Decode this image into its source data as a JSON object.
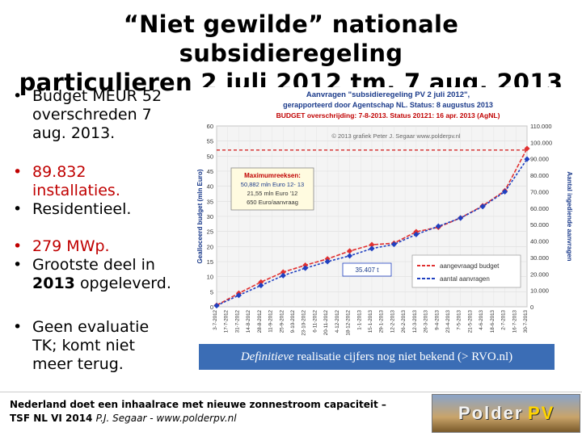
{
  "title_line1": "“Niet gewilde” nationale subsidieregeling",
  "title_line2": "particulieren 2 juli 2012 tm. 7 aug. 2013",
  "bullets": {
    "budget_line1": "Budget  MEUR 52",
    "budget_line2": "overschreden 7",
    "budget_line3": "aug. 2013.",
    "installs_line1": "89.832",
    "installs_line2": "installaties.",
    "residential": "Residentieel.",
    "mwp": "279 MWp.",
    "largest_line1": "Grootste deel in",
    "largest_line2_bold": "2013",
    "largest_line2_rest": "opgeleverd.",
    "noeval_line1": "Geen evaluatie",
    "noeval_line2": "TK; komt niet",
    "noeval_line3": "meer terug."
  },
  "note_box": {
    "italic": "Definitieve",
    "rest": "realisatie cijfers nog niet bekend (> RVO.nl)"
  },
  "footer": {
    "line1": "Nederland doet een inhaalrace met nieuwe zonnestroom capaciteit –",
    "line2_bold": "TSF NL VI 2014",
    "line2_rest": "P.J. Segaar  - www.polderpv.nl"
  },
  "logo": {
    "word1": "Polder",
    "word2": "PV"
  },
  "chart_data": {
    "type": "line",
    "title_line1": "Aanvragen \"subsidieregeling  PV 2 juli 2012\",",
    "title_line2": "gerapporteerd door Agentschap NL. Status: 8 augustus 2013",
    "title_line3": "BUDGET  overschrijding: 7-8-2013. Status 20121: 16 apr. 2013 (AgNL)",
    "credit": "© 2013 grafiek Peter J. Segaar  www.polderpv.nl",
    "ylabel_left": "Gealloceerd budget (mln Euro)",
    "ylabel_right": "Aantal ingediende aanvragen",
    "y_left_ticks": [
      "60",
      "55",
      "50",
      "45",
      "40",
      "35",
      "30",
      "25",
      "20",
      "15",
      "10",
      "5",
      "0"
    ],
    "y_right_ticks": [
      "110.000",
      "100.000",
      "90.000",
      "80.000",
      "70.000",
      "60.000",
      "50.000",
      "40.000",
      "30.000",
      "20.000",
      "10.000",
      "0"
    ],
    "ylim_left": [
      0,
      60
    ],
    "ylim_right": [
      0,
      110000
    ],
    "budget_line": 52,
    "x_labels": [
      "3-7-2012",
      "17-7-2012",
      "31-7-2012",
      "14-8-2012",
      "28-8-2012",
      "11-9-2012",
      "25-9-2012",
      "9-10-2012",
      "23-10-2012",
      "6-11-2012",
      "20-11-2012",
      "4-12-2012",
      "18-12-2012",
      "1-1-2013",
      "15-1-2013",
      "29-1-2013",
      "12-2-2013",
      "26-2-2013",
      "12-3-2013",
      "26-3-2013",
      "9-4-2013",
      "23-4-2013",
      "7-5-2013",
      "21-5-2013",
      "4-6-2013",
      "18-6-2013",
      "2-7-2013",
      "16-7-2013",
      "30-7-2013"
    ],
    "max_box": {
      "heading": "Maximumreeksen:",
      "line1": "50,882 mln Euro 12- 13",
      "line2": "21,55 mln Euro '12",
      "line3": "650 Euro/aanvraag"
    },
    "annotation_count": "35.407 t",
    "series": [
      {
        "name": "aangevraagd budget",
        "color": "#e03030",
        "x": [
          0,
          2,
          4,
          6,
          8,
          10,
          12,
          14,
          16,
          18,
          20,
          22,
          24,
          26,
          28
        ],
        "values": [
          0.5,
          4.5,
          8.2,
          11.5,
          13.8,
          15.9,
          18.5,
          20.6,
          21.1,
          24.9,
          26.4,
          29.5,
          33.5,
          38.5,
          52.5
        ]
      },
      {
        "name": "aantal aanvragen",
        "color": "#2040c0",
        "x": [
          0,
          2,
          4,
          6,
          8,
          10,
          12,
          14,
          16,
          18,
          20,
          22,
          24,
          26,
          28
        ],
        "values": [
          700,
          7000,
          13000,
          19000,
          23500,
          27500,
          31000,
          35407,
          38000,
          44000,
          49000,
          54000,
          61000,
          70000,
          89832
        ]
      }
    ],
    "legend_position": "bottom-right"
  }
}
